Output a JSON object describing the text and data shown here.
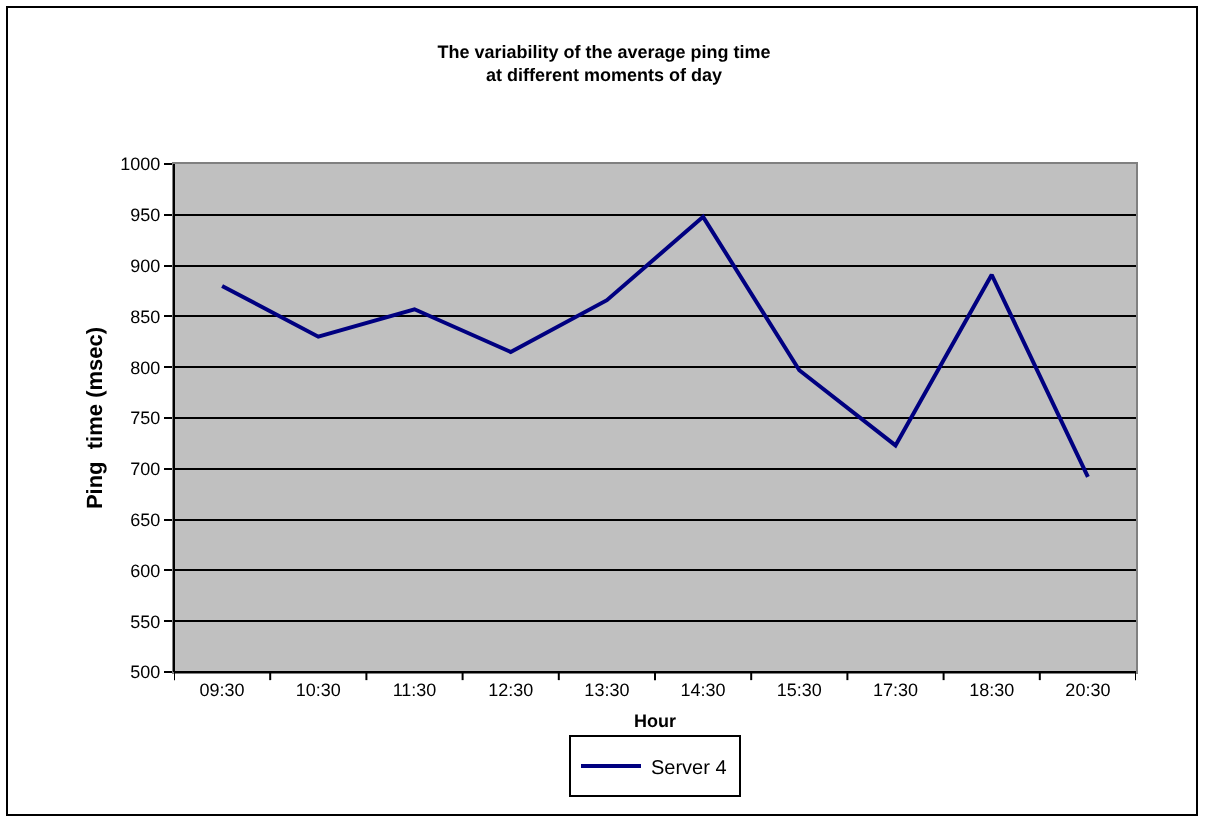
{
  "chart_data": {
    "type": "line",
    "title": "The variability of the average ping time\nat different moments of day",
    "xlabel": "Hour",
    "ylabel": "Ping  time (msec)",
    "categories": [
      "09:30",
      "10:30",
      "11:30",
      "12:30",
      "13:30",
      "14:30",
      "15:30",
      "17:30",
      "18:30",
      "20:30"
    ],
    "series": [
      {
        "name": "Server 4",
        "color": "#000080",
        "values": [
          880,
          830,
          857,
          815,
          866,
          948,
          797,
          723,
          891,
          692
        ]
      }
    ],
    "ylim": [
      500,
      1000
    ],
    "yticks": [
      500,
      550,
      600,
      650,
      700,
      750,
      800,
      850,
      900,
      950,
      1000
    ],
    "grid": "y",
    "legend": "bottom",
    "marker": "none",
    "line_style": "solid"
  }
}
